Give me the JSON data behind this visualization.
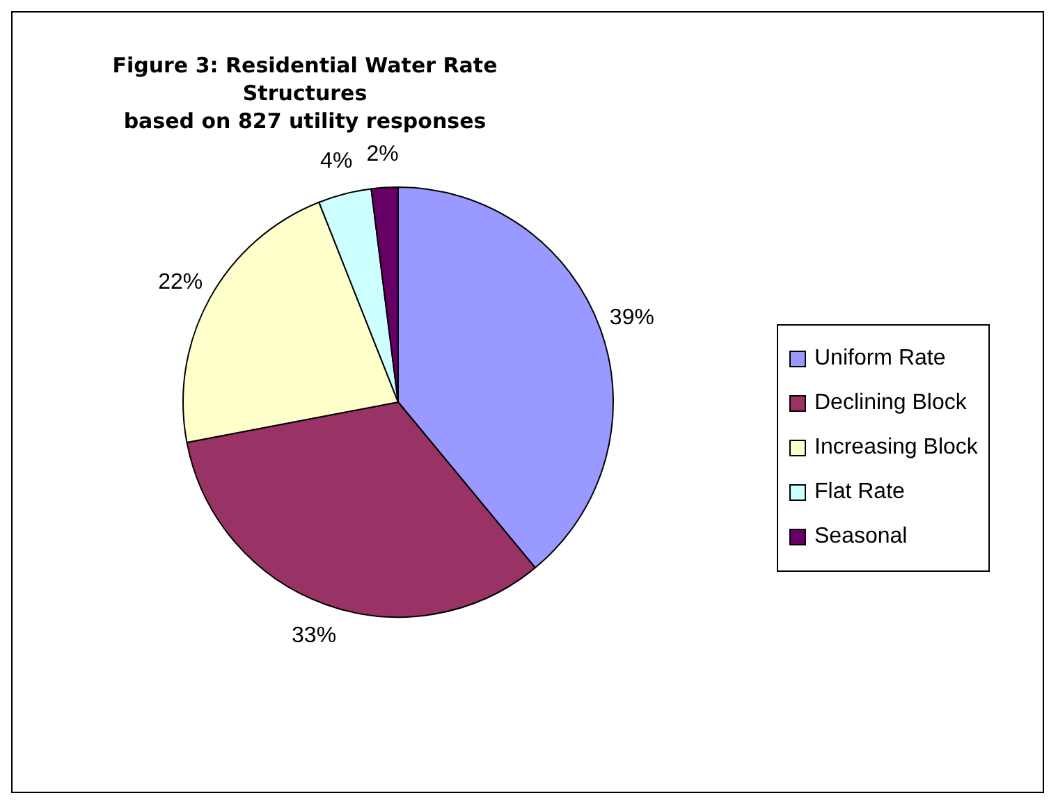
{
  "chart_data": {
    "type": "pie",
    "title": "Figure 3: Residential Water Rate Structures",
    "subtitle": "based on 827 utility responses",
    "categories": [
      "Uniform Rate",
      "Declining Block",
      "Increasing Block",
      "Flat Rate",
      "Seasonal"
    ],
    "values": [
      39,
      33,
      22,
      4,
      2
    ],
    "colors": [
      "#9999ff",
      "#993366",
      "#ffffcc",
      "#ccffff",
      "#660066"
    ],
    "value_labels": [
      "39%",
      "33%",
      "22%",
      "4%",
      "2%"
    ],
    "legend": "right"
  }
}
